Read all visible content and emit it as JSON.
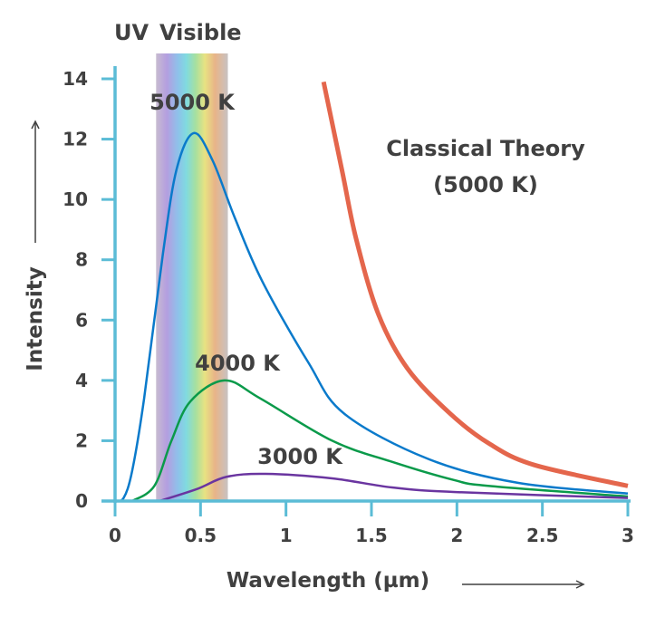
{
  "chart_data": {
    "type": "line",
    "title": "",
    "xlabel": "Wavelength (µm)",
    "ylabel": "Intensity",
    "xlim": [
      0,
      3
    ],
    "ylim": [
      0,
      14
    ],
    "x_ticks": [
      "0",
      "0.5",
      "1",
      "1.5",
      "2",
      "2.5",
      "3"
    ],
    "x_tick_values": [
      0,
      0.5,
      1,
      1.5,
      2,
      2.5,
      3
    ],
    "y_ticks": [
      "0",
      "2",
      "4",
      "6",
      "8",
      "10",
      "12",
      "14"
    ],
    "y_tick_values": [
      0,
      2,
      4,
      6,
      8,
      10,
      12,
      14
    ],
    "grid": false,
    "axis_color": "#5bbcd6",
    "spectrum_band": {
      "labels": [
        "UV",
        "Visible"
      ],
      "x_range": [
        0.24,
        0.66
      ]
    },
    "series": [
      {
        "name": "5000 K",
        "color": "#0a7acb",
        "points": [
          [
            0,
            0
          ],
          [
            0.05,
            0.1
          ],
          [
            0.1,
            1
          ],
          [
            0.17,
            3.4
          ],
          [
            0.28,
            8.2
          ],
          [
            0.36,
            11
          ],
          [
            0.46,
            12.2
          ],
          [
            0.57,
            11.3
          ],
          [
            0.7,
            9.4
          ],
          [
            0.86,
            7.3
          ],
          [
            1.13,
            4.6
          ],
          [
            1.34,
            2.9
          ],
          [
            1.83,
            1.4
          ],
          [
            2.36,
            0.6
          ],
          [
            3,
            0.25
          ]
        ]
      },
      {
        "name": "4000 K",
        "color": "#0a9a4a",
        "points": [
          [
            0.1,
            0
          ],
          [
            0.23,
            0.5
          ],
          [
            0.33,
            2
          ],
          [
            0.44,
            3.3
          ],
          [
            0.64,
            4.0
          ],
          [
            0.85,
            3.4
          ],
          [
            1.27,
            2.0
          ],
          [
            1.62,
            1.3
          ],
          [
            1.98,
            0.7
          ],
          [
            2.19,
            0.5
          ],
          [
            3,
            0.15
          ]
        ]
      },
      {
        "name": "3000 K",
        "color": "#6a35a0",
        "points": [
          [
            0.26,
            0
          ],
          [
            0.48,
            0.4
          ],
          [
            0.65,
            0.8
          ],
          [
            0.88,
            0.9
          ],
          [
            1.27,
            0.75
          ],
          [
            1.62,
            0.45
          ],
          [
            1.98,
            0.3
          ],
          [
            3,
            0.1
          ]
        ]
      },
      {
        "name": "Classical Theory (5000 K)",
        "color": "#e4664c",
        "points": [
          [
            1.22,
            13.9
          ],
          [
            1.33,
            10.9
          ],
          [
            1.41,
            8.7
          ],
          [
            1.54,
            6.2
          ],
          [
            1.71,
            4.4
          ],
          [
            1.96,
            2.9
          ],
          [
            2.19,
            1.9
          ],
          [
            2.45,
            1.2
          ],
          [
            3,
            0.5
          ]
        ]
      }
    ],
    "annotations": {
      "uv": "UV",
      "visible": "Visible",
      "t5000": "5000 K",
      "t4000": "4000 K",
      "t3000": "3000 K",
      "classical_line1": "Classical Theory",
      "classical_line2": "(5000 K)"
    }
  }
}
